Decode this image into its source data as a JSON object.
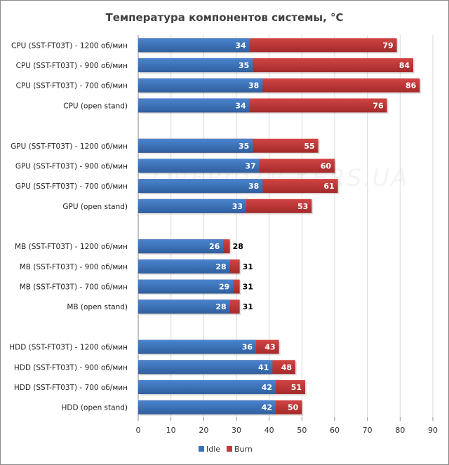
{
  "chart_data": {
    "type": "bar",
    "orientation": "horizontal",
    "title": "Температура компонентов системы, °C",
    "xlabel": "",
    "ylabel": "",
    "xlim": [
      0,
      90
    ],
    "xticks": [
      0,
      10,
      20,
      30,
      40,
      50,
      60,
      70,
      80,
      90
    ],
    "grid": true,
    "legend_position": "bottom",
    "watermark": "OVERCLOCKERS.UA",
    "groups": [
      {
        "categories": [
          "CPU (SST-FT03T) - 1200 об/мин",
          "CPU (SST-FT03T) - 900 об/мин",
          "CPU (SST-FT03T) - 700 об/мин",
          "CPU (open stand)"
        ],
        "idle": [
          34,
          35,
          38,
          34
        ],
        "burn": [
          79,
          84,
          86,
          76
        ]
      },
      {
        "categories": [
          "GPU (SST-FT03T) - 1200 об/мин",
          "GPU (SST-FT03T) - 900 об/мин",
          "GPU (SST-FT03T) - 700 об/мин",
          "GPU (open stand)"
        ],
        "idle": [
          35,
          37,
          38,
          33
        ],
        "burn": [
          55,
          60,
          61,
          53
        ]
      },
      {
        "categories": [
          "MB (SST-FT03T) - 1200 об/мин",
          "MB (SST-FT03T) - 900 об/мин",
          "MB (SST-FT03T) - 700 об/мин",
          "MB (open stand)"
        ],
        "idle": [
          26,
          28,
          29,
          28
        ],
        "burn": [
          28,
          31,
          31,
          31
        ]
      },
      {
        "categories": [
          "HDD (SST-FT03T) - 1200 об/мин",
          "HDD (SST-FT03T) - 900 об/мин",
          "HDD (SST-FT03T) - 700 об/мин",
          "HDD (open stand)"
        ],
        "idle": [
          36,
          41,
          42,
          42
        ],
        "burn": [
          43,
          48,
          51,
          50
        ]
      }
    ],
    "series": [
      {
        "name": "Idle",
        "color": "#3a70b8"
      },
      {
        "name": "Burn",
        "color": "#c0393a"
      }
    ]
  }
}
